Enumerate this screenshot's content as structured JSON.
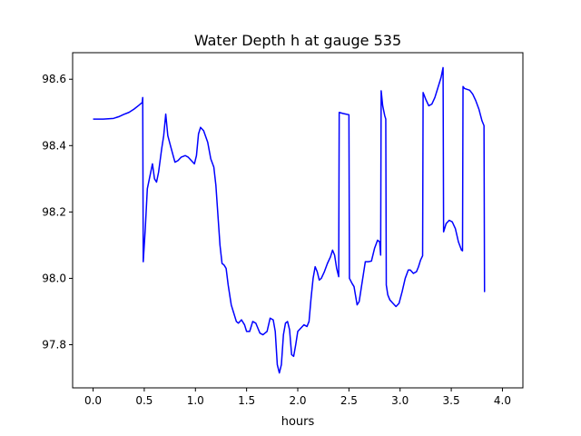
{
  "chart_data": {
    "type": "line",
    "title": "Water Depth h at gauge 535",
    "xlabel": "hours",
    "ylabel": "",
    "xlim": [
      -0.2,
      4.2
    ],
    "ylim": [
      97.67,
      98.68
    ],
    "xticks": [
      0.0,
      0.5,
      1.0,
      1.5,
      2.0,
      2.5,
      3.0,
      3.5,
      4.0
    ],
    "xtick_labels": [
      "0.0",
      "0.5",
      "1.0",
      "1.5",
      "2.0",
      "2.5",
      "3.0",
      "3.5",
      "4.0"
    ],
    "yticks": [
      97.8,
      98.0,
      98.2,
      98.4,
      98.6
    ],
    "ytick_labels": [
      "97.8",
      "98.0",
      "98.2",
      "98.4",
      "98.6"
    ],
    "grid": false,
    "legend": "none",
    "series": [
      {
        "color": "#0000ff",
        "points": [
          [
            0.0,
            98.48
          ],
          [
            0.1,
            98.48
          ],
          [
            0.2,
            98.482
          ],
          [
            0.25,
            98.487
          ],
          [
            0.3,
            98.494
          ],
          [
            0.35,
            98.5
          ],
          [
            0.4,
            98.51
          ],
          [
            0.45,
            98.522
          ],
          [
            0.48,
            98.53
          ],
          [
            0.485,
            98.545
          ],
          [
            0.49,
            98.05
          ],
          [
            0.51,
            98.15
          ],
          [
            0.53,
            98.27
          ],
          [
            0.55,
            98.3
          ],
          [
            0.58,
            98.345
          ],
          [
            0.6,
            98.3
          ],
          [
            0.62,
            98.29
          ],
          [
            0.64,
            98.32
          ],
          [
            0.67,
            98.39
          ],
          [
            0.69,
            98.43
          ],
          [
            0.71,
            98.495
          ],
          [
            0.73,
            98.43
          ],
          [
            0.76,
            98.395
          ],
          [
            0.8,
            98.35
          ],
          [
            0.83,
            98.355
          ],
          [
            0.86,
            98.365
          ],
          [
            0.9,
            98.37
          ],
          [
            0.93,
            98.365
          ],
          [
            0.96,
            98.355
          ],
          [
            0.99,
            98.345
          ],
          [
            1.01,
            98.37
          ],
          [
            1.03,
            98.435
          ],
          [
            1.05,
            98.455
          ],
          [
            1.08,
            98.445
          ],
          [
            1.12,
            98.41
          ],
          [
            1.15,
            98.36
          ],
          [
            1.18,
            98.335
          ],
          [
            1.2,
            98.28
          ],
          [
            1.22,
            98.19
          ],
          [
            1.24,
            98.1
          ],
          [
            1.26,
            98.045
          ],
          [
            1.28,
            98.04
          ],
          [
            1.3,
            98.03
          ],
          [
            1.32,
            97.98
          ],
          [
            1.35,
            97.92
          ],
          [
            1.37,
            97.9
          ],
          [
            1.4,
            97.87
          ],
          [
            1.42,
            97.865
          ],
          [
            1.45,
            97.875
          ],
          [
            1.48,
            97.86
          ],
          [
            1.5,
            97.84
          ],
          [
            1.53,
            97.84
          ],
          [
            1.56,
            97.87
          ],
          [
            1.59,
            97.865
          ],
          [
            1.61,
            97.85
          ],
          [
            1.63,
            97.835
          ],
          [
            1.66,
            97.83
          ],
          [
            1.68,
            97.835
          ],
          [
            1.7,
            97.84
          ],
          [
            1.73,
            97.88
          ],
          [
            1.76,
            97.875
          ],
          [
            1.78,
            97.84
          ],
          [
            1.8,
            97.74
          ],
          [
            1.82,
            97.715
          ],
          [
            1.84,
            97.74
          ],
          [
            1.86,
            97.83
          ],
          [
            1.88,
            97.865
          ],
          [
            1.9,
            97.87
          ],
          [
            1.92,
            97.845
          ],
          [
            1.94,
            97.77
          ],
          [
            1.96,
            97.765
          ],
          [
            1.98,
            97.8
          ],
          [
            2.0,
            97.84
          ],
          [
            2.03,
            97.85
          ],
          [
            2.06,
            97.86
          ],
          [
            2.09,
            97.855
          ],
          [
            2.11,
            97.87
          ],
          [
            2.13,
            97.94
          ],
          [
            2.15,
            98.0
          ],
          [
            2.17,
            98.035
          ],
          [
            2.19,
            98.02
          ],
          [
            2.21,
            97.995
          ],
          [
            2.23,
            98.0
          ],
          [
            2.26,
            98.02
          ],
          [
            2.29,
            98.045
          ],
          [
            2.32,
            98.065
          ],
          [
            2.34,
            98.085
          ],
          [
            2.36,
            98.07
          ],
          [
            2.38,
            98.03
          ],
          [
            2.4,
            98.005
          ],
          [
            2.405,
            98.5
          ],
          [
            2.44,
            98.497
          ],
          [
            2.47,
            98.495
          ],
          [
            2.5,
            98.493
          ],
          [
            2.505,
            98.0
          ],
          [
            2.53,
            97.985
          ],
          [
            2.55,
            97.975
          ],
          [
            2.58,
            97.92
          ],
          [
            2.6,
            97.93
          ],
          [
            2.62,
            97.97
          ],
          [
            2.64,
            98.01
          ],
          [
            2.66,
            98.05
          ],
          [
            2.69,
            98.05
          ],
          [
            2.72,
            98.052
          ],
          [
            2.75,
            98.09
          ],
          [
            2.78,
            98.115
          ],
          [
            2.8,
            98.11
          ],
          [
            2.81,
            98.07
          ],
          [
            2.815,
            98.565
          ],
          [
            2.83,
            98.52
          ],
          [
            2.85,
            98.49
          ],
          [
            2.86,
            98.48
          ],
          [
            2.865,
            97.98
          ],
          [
            2.88,
            97.95
          ],
          [
            2.9,
            97.935
          ],
          [
            2.93,
            97.925
          ],
          [
            2.96,
            97.915
          ],
          [
            2.99,
            97.925
          ],
          [
            3.02,
            97.96
          ],
          [
            3.05,
            98.0
          ],
          [
            3.08,
            98.025
          ],
          [
            3.1,
            98.025
          ],
          [
            3.13,
            98.015
          ],
          [
            3.16,
            98.02
          ],
          [
            3.18,
            98.035
          ],
          [
            3.2,
            98.055
          ],
          [
            3.22,
            98.068
          ],
          [
            3.225,
            98.56
          ],
          [
            3.25,
            98.54
          ],
          [
            3.28,
            98.52
          ],
          [
            3.31,
            98.525
          ],
          [
            3.34,
            98.545
          ],
          [
            3.37,
            98.575
          ],
          [
            3.4,
            98.605
          ],
          [
            3.42,
            98.635
          ],
          [
            3.425,
            98.14
          ],
          [
            3.45,
            98.165
          ],
          [
            3.48,
            98.175
          ],
          [
            3.51,
            98.17
          ],
          [
            3.54,
            98.15
          ],
          [
            3.57,
            98.11
          ],
          [
            3.6,
            98.085
          ],
          [
            3.61,
            98.083
          ],
          [
            3.615,
            98.578
          ],
          [
            3.63,
            98.572
          ],
          [
            3.65,
            98.57
          ],
          [
            3.68,
            98.567
          ],
          [
            3.71,
            98.555
          ],
          [
            3.74,
            98.535
          ],
          [
            3.77,
            98.51
          ],
          [
            3.8,
            98.475
          ],
          [
            3.82,
            98.46
          ],
          [
            3.825,
            97.96
          ],
          [
            3.83,
            97.96
          ]
        ]
      }
    ]
  }
}
